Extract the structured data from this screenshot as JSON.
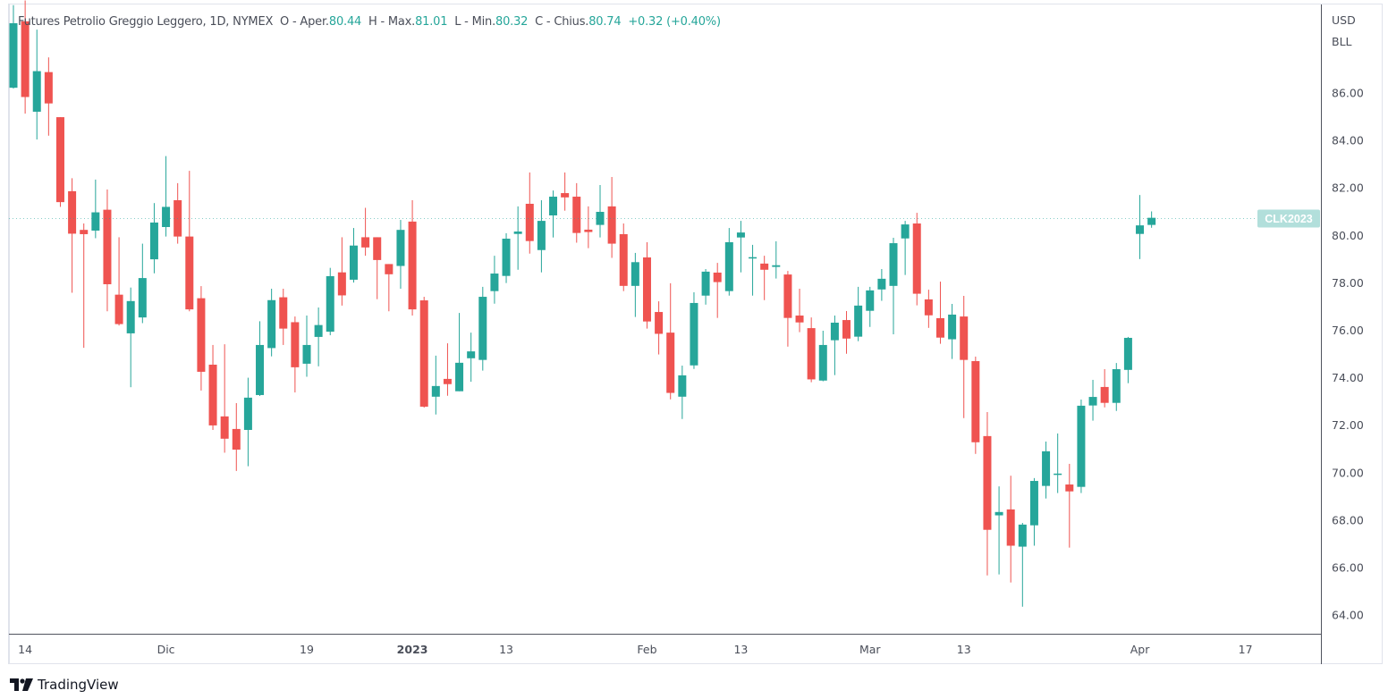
{
  "legend": {
    "title": "Futures Petrolio Greggio Leggero, 1D, NYMEX",
    "open_label": "O - Aper.",
    "open": "80.44",
    "high_label": "H - Max.",
    "high": "81.01",
    "low_label": "L - Min.",
    "low": "80.32",
    "close_label": "C - Chius.",
    "close": "80.74",
    "change": "+0.32 (+0.40%)"
  },
  "price_axis": {
    "currency": "USD",
    "unit": "BLL"
  },
  "symbol_tag": "CLK2023",
  "branding": {
    "logo_text": "TradingView"
  },
  "colors": {
    "up": "#26a69a",
    "down": "#ef5350",
    "tag_bg": "#b2dfdb"
  },
  "chart_data": {
    "type": "candlestick",
    "title": "Futures Petrolio Greggio Leggero, 1D, NYMEX",
    "ylabel": "USD BLL",
    "ylim": [
      63.21,
      89.73
    ],
    "yticks": [
      "86.00",
      "84.00",
      "82.00",
      "80.00",
      "78.00",
      "76.00",
      "74.00",
      "72.00",
      "70.00",
      "68.00",
      "66.00",
      "64.00"
    ],
    "ytick_values": [
      86,
      84,
      82,
      80,
      78,
      76,
      74,
      72,
      70,
      68,
      66,
      64
    ],
    "xticks": [
      {
        "label": "14",
        "index": 1,
        "bold": false
      },
      {
        "label": "Dic",
        "index": 13,
        "bold": false
      },
      {
        "label": "19",
        "index": 25,
        "bold": false
      },
      {
        "label": "2023",
        "index": 34,
        "bold": true
      },
      {
        "label": "13",
        "index": 42,
        "bold": false
      },
      {
        "label": "Feb",
        "index": 54,
        "bold": false
      },
      {
        "label": "13",
        "index": 62,
        "bold": false
      },
      {
        "label": "Mar",
        "index": 73,
        "bold": false
      },
      {
        "label": "13",
        "index": 81,
        "bold": false
      },
      {
        "label": "Apr",
        "index": 96,
        "bold": false
      },
      {
        "label": "17",
        "index": 105,
        "bold": false
      }
    ],
    "last_price": 80.74,
    "ohlc_fields": [
      "open",
      "high",
      "low",
      "close"
    ],
    "ohlc": [
      [
        86.22,
        89.7,
        86.19,
        88.94
      ],
      [
        89.02,
        89.9,
        85.13,
        85.83
      ],
      [
        85.21,
        88.67,
        84.04,
        86.92
      ],
      [
        86.88,
        87.5,
        84.2,
        85.56
      ],
      [
        84.98,
        84.98,
        81.2,
        81.4
      ],
      [
        81.86,
        82.41,
        77.58,
        80.07
      ],
      [
        80.23,
        80.5,
        75.26,
        80.05
      ],
      [
        80.2,
        82.35,
        79.88,
        80.97
      ],
      [
        81.08,
        81.93,
        76.8,
        77.94
      ],
      [
        77.5,
        79.92,
        76.2,
        76.26
      ],
      [
        75.87,
        77.8,
        73.6,
        77.23
      ],
      [
        76.54,
        79.65,
        76.3,
        78.2
      ],
      [
        78.99,
        81.36,
        78.4,
        80.54
      ],
      [
        80.35,
        83.34,
        79.95,
        81.2
      ],
      [
        81.48,
        82.2,
        79.65,
        79.95
      ],
      [
        79.95,
        82.72,
        76.8,
        76.88
      ],
      [
        77.35,
        77.86,
        73.46,
        74.25
      ],
      [
        74.55,
        75.38,
        71.8,
        71.99
      ],
      [
        72.37,
        75.41,
        70.84,
        71.43
      ],
      [
        71.84,
        72.93,
        70.07,
        70.97
      ],
      [
        71.8,
        74.0,
        70.27,
        73.16
      ],
      [
        73.27,
        76.38,
        73.23,
        75.38
      ],
      [
        75.25,
        77.75,
        74.9,
        77.27
      ],
      [
        77.39,
        77.75,
        75.38,
        76.07
      ],
      [
        76.34,
        76.58,
        73.38,
        74.44
      ],
      [
        74.59,
        76.62,
        74.04,
        75.38
      ],
      [
        75.72,
        76.96,
        74.48,
        76.22
      ],
      [
        75.94,
        78.63,
        75.79,
        78.28
      ],
      [
        78.44,
        79.92,
        77.04,
        77.47
      ],
      [
        78.13,
        80.31,
        78.01,
        79.57
      ],
      [
        79.92,
        81.16,
        79.14,
        79.49
      ],
      [
        79.92,
        79.92,
        77.31,
        78.96
      ],
      [
        78.79,
        78.79,
        76.8,
        78.36
      ],
      [
        78.71,
        80.65,
        77.75,
        80.23
      ],
      [
        80.58,
        81.48,
        76.62,
        76.88
      ],
      [
        77.26,
        77.41,
        72.74,
        72.78
      ],
      [
        73.2,
        74.93,
        72.45,
        73.65
      ],
      [
        73.95,
        75.45,
        73.24,
        73.73
      ],
      [
        73.43,
        76.73,
        73.43,
        74.63
      ],
      [
        74.82,
        75.9,
        73.83,
        75.11
      ],
      [
        74.75,
        77.83,
        74.3,
        77.41
      ],
      [
        77.65,
        79.14,
        77.12,
        78.39
      ],
      [
        78.29,
        80.09,
        77.99,
        79.86
      ],
      [
        80.06,
        81.22,
        78.55,
        80.16
      ],
      [
        81.33,
        82.65,
        79.23,
        79.76
      ],
      [
        79.38,
        81.48,
        78.44,
        80.61
      ],
      [
        80.84,
        81.89,
        79.91,
        81.63
      ],
      [
        81.78,
        82.65,
        81.04,
        81.6
      ],
      [
        81.63,
        82.2,
        79.69,
        80.1
      ],
      [
        80.24,
        81.22,
        79.46,
        80.14
      ],
      [
        80.44,
        82.12,
        79.91,
        80.99
      ],
      [
        81.22,
        82.46,
        79.05,
        79.65
      ],
      [
        80.05,
        80.5,
        77.65,
        77.87
      ],
      [
        77.87,
        79.26,
        76.56,
        78.87
      ],
      [
        79.07,
        79.71,
        76.07,
        76.37
      ],
      [
        76.77,
        77.22,
        74.98,
        75.85
      ],
      [
        75.9,
        77.98,
        73.09,
        73.36
      ],
      [
        73.2,
        74.51,
        72.26,
        74.1
      ],
      [
        74.52,
        77.6,
        74.37,
        77.15
      ],
      [
        77.46,
        78.58,
        77.08,
        78.47
      ],
      [
        78.43,
        78.84,
        76.52,
        78.03
      ],
      [
        77.65,
        80.31,
        77.46,
        79.71
      ],
      [
        79.91,
        80.61,
        78.44,
        80.12
      ],
      [
        79.04,
        79.6,
        77.46,
        79.08
      ],
      [
        78.81,
        79.14,
        77.27,
        78.55
      ],
      [
        78.67,
        79.75,
        78.18,
        78.74
      ],
      [
        78.35,
        78.5,
        75.31,
        76.52
      ],
      [
        76.62,
        77.75,
        75.92,
        76.33
      ],
      [
        76.09,
        76.54,
        73.81,
        73.93
      ],
      [
        73.88,
        75.98,
        73.85,
        75.38
      ],
      [
        75.58,
        76.62,
        74.11,
        76.32
      ],
      [
        76.43,
        76.81,
        75.01,
        75.65
      ],
      [
        75.73,
        77.83,
        75.54,
        77.04
      ],
      [
        76.82,
        77.83,
        76.14,
        77.68
      ],
      [
        77.72,
        78.58,
        77.24,
        78.17
      ],
      [
        77.87,
        79.9,
        75.83,
        79.67
      ],
      [
        79.87,
        80.61,
        78.33,
        80.46
      ],
      [
        80.5,
        80.95,
        77.05,
        77.54
      ],
      [
        77.3,
        77.71,
        76.1,
        76.63
      ],
      [
        76.51,
        78.05,
        75.43,
        75.69
      ],
      [
        75.62,
        77.11,
        74.79,
        76.66
      ],
      [
        76.58,
        77.45,
        72.3,
        74.75
      ],
      [
        74.7,
        74.89,
        70.79,
        71.28
      ],
      [
        71.54,
        72.55,
        65.67,
        67.59
      ],
      [
        68.2,
        69.42,
        65.71,
        68.34
      ],
      [
        68.45,
        69.87,
        65.37,
        66.92
      ],
      [
        66.88,
        67.88,
        64.35,
        67.81
      ],
      [
        67.78,
        69.77,
        66.92,
        69.65
      ],
      [
        69.44,
        71.31,
        68.91,
        70.9
      ],
      [
        69.92,
        71.65,
        69.14,
        69.96
      ],
      [
        69.5,
        70.37,
        66.84,
        69.21
      ],
      [
        69.4,
        73.08,
        69.14,
        72.82
      ],
      [
        72.83,
        73.91,
        72.19,
        73.19
      ],
      [
        73.61,
        74.36,
        72.75,
        72.94
      ],
      [
        72.94,
        74.62,
        72.6,
        74.36
      ],
      [
        74.33,
        75.72,
        73.77,
        75.68
      ],
      [
        80.06,
        81.7,
        79.0,
        80.42
      ],
      [
        80.44,
        81.01,
        80.32,
        80.74
      ]
    ]
  }
}
